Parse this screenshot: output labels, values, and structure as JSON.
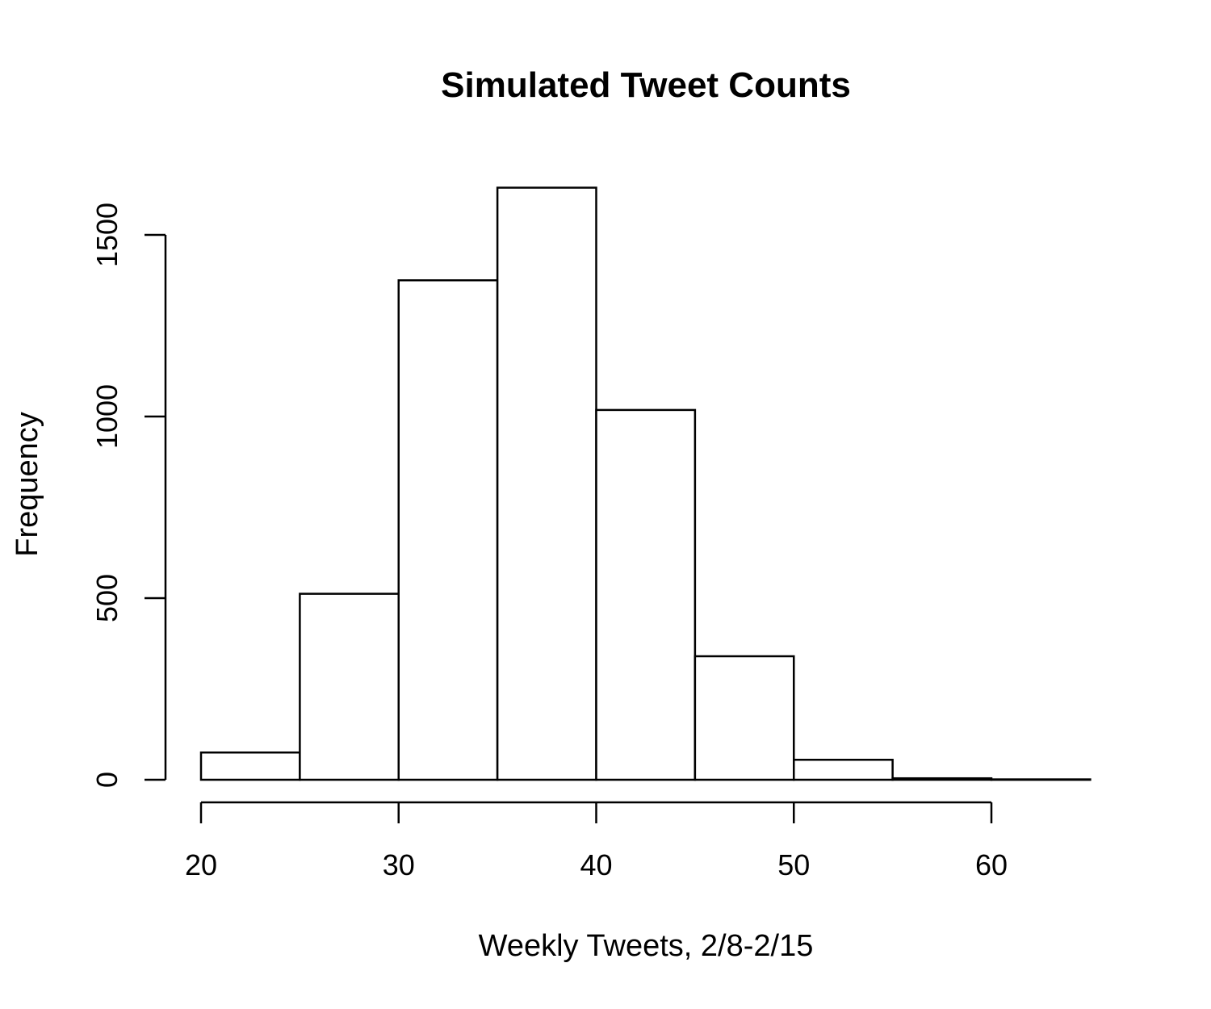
{
  "chart_data": {
    "type": "bar",
    "title": "Simulated Tweet Counts",
    "xlabel": "Weekly Tweets, 2/8-2/15",
    "ylabel": "Frequency",
    "bin_edges": [
      20,
      25,
      30,
      35,
      40,
      45,
      50,
      55,
      60,
      65
    ],
    "categories": [
      "20-25",
      "25-30",
      "30-35",
      "35-40",
      "40-45",
      "45-50",
      "50-55",
      "55-60",
      "60-65"
    ],
    "values": [
      75,
      512,
      1375,
      1630,
      1018,
      340,
      55,
      4,
      1
    ],
    "xlim": [
      20,
      65
    ],
    "ylim": [
      0,
      1630
    ],
    "x_ticks": [
      20,
      30,
      40,
      50,
      60
    ],
    "x_tick_labels": [
      "20",
      "30",
      "40",
      "50",
      "60"
    ],
    "y_ticks": [
      0,
      500,
      1000,
      1500
    ],
    "y_tick_labels": [
      "0",
      "500",
      "1000",
      "1500"
    ],
    "grid": false,
    "legend": "none",
    "colors": {
      "bar_fill": "#ffffff",
      "bar_stroke": "#000000",
      "axis": "#000000"
    }
  }
}
